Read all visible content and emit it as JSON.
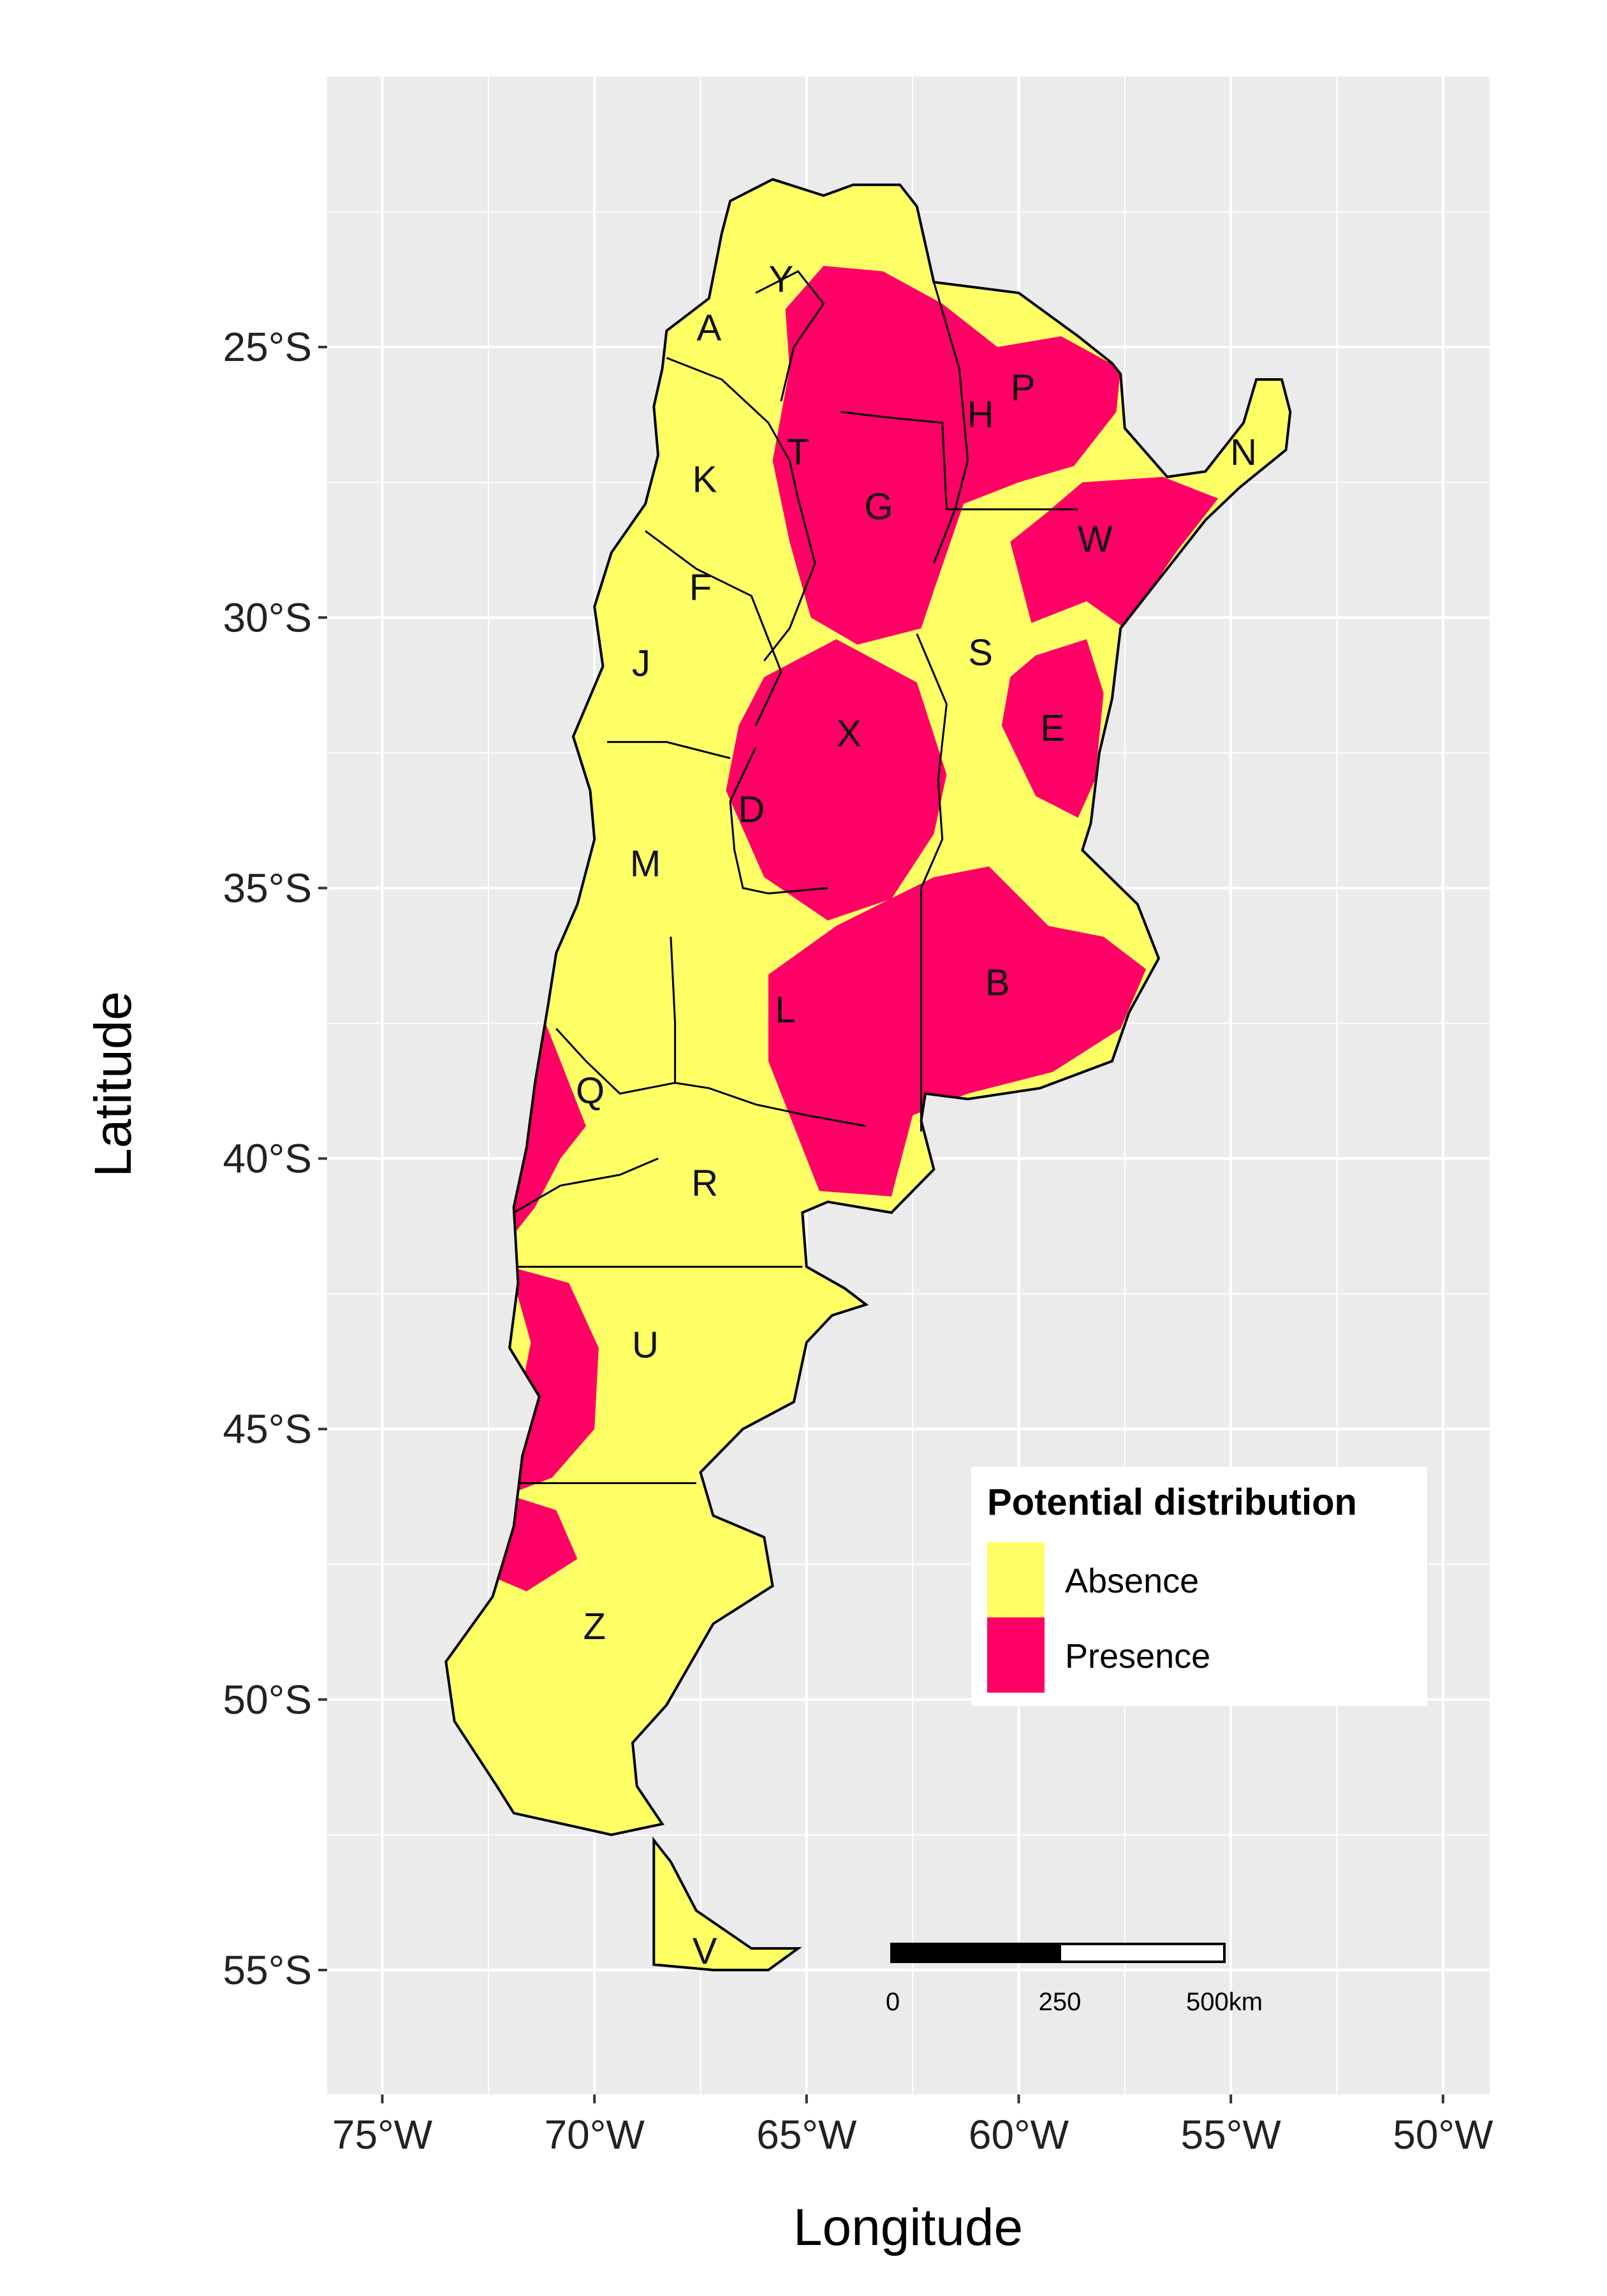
{
  "axes": {
    "x_title": "Longitude",
    "y_title": "Latitude",
    "x_ticks": [
      {
        "value": -75,
        "label": "75°W"
      },
      {
        "value": -70,
        "label": "70°W"
      },
      {
        "value": -65,
        "label": "65°W"
      },
      {
        "value": -60,
        "label": "60°W"
      },
      {
        "value": -55,
        "label": "55°W"
      },
      {
        "value": -50,
        "label": "50°W"
      }
    ],
    "y_ticks": [
      {
        "value": -25,
        "label": "25°S"
      },
      {
        "value": -30,
        "label": "30°S"
      },
      {
        "value": -35,
        "label": "35°S"
      },
      {
        "value": -40,
        "label": "40°S"
      },
      {
        "value": -45,
        "label": "45°S"
      },
      {
        "value": -50,
        "label": "50°S"
      },
      {
        "value": -55,
        "label": "55°S"
      }
    ],
    "x_range": [
      -76.3,
      -48.9
    ],
    "y_range": [
      -57.3,
      -20.0
    ]
  },
  "colors": {
    "panel": "#EBEBEB",
    "grid": "#FFFFFF",
    "absence": "#FFFF66",
    "presence": "#FF0066",
    "border": "#000000"
  },
  "legend": {
    "title": "Potential distribution",
    "position": "bottom-right",
    "items": [
      {
        "label": "Absence",
        "color": "#FFFF66"
      },
      {
        "label": "Presence",
        "color": "#FF0066"
      }
    ]
  },
  "scale_bar": {
    "labels": [
      "0",
      "250",
      "500km"
    ]
  },
  "regions": [
    {
      "code": "Y",
      "lon": -65.6,
      "lat": -23.8
    },
    {
      "code": "A",
      "lon": -67.3,
      "lat": -24.7
    },
    {
      "code": "P",
      "lon": -59.9,
      "lat": -25.8
    },
    {
      "code": "H",
      "lon": -60.9,
      "lat": -26.3
    },
    {
      "code": "T",
      "lon": -65.2,
      "lat": -27.0
    },
    {
      "code": "K",
      "lon": -67.4,
      "lat": -27.5
    },
    {
      "code": "N",
      "lon": -54.7,
      "lat": -27.0
    },
    {
      "code": "G",
      "lon": -63.3,
      "lat": -28.0
    },
    {
      "code": "W",
      "lon": -58.2,
      "lat": -28.6
    },
    {
      "code": "F",
      "lon": -67.5,
      "lat": -29.5
    },
    {
      "code": "S",
      "lon": -60.9,
      "lat": -30.7
    },
    {
      "code": "J",
      "lon": -68.9,
      "lat": -30.9
    },
    {
      "code": "E",
      "lon": -59.2,
      "lat": -32.1
    },
    {
      "code": "X",
      "lon": -64.0,
      "lat": -32.2
    },
    {
      "code": "D",
      "lon": -66.3,
      "lat": -33.6
    },
    {
      "code": "M",
      "lon": -68.8,
      "lat": -34.6
    },
    {
      "code": "B",
      "lon": -60.5,
      "lat": -36.8
    },
    {
      "code": "L",
      "lon": -65.5,
      "lat": -37.3
    },
    {
      "code": "Q",
      "lon": -70.1,
      "lat": -38.8
    },
    {
      "code": "R",
      "lon": -67.4,
      "lat": -40.5
    },
    {
      "code": "U",
      "lon": -68.8,
      "lat": -43.5
    },
    {
      "code": "Z",
      "lon": -70.0,
      "lat": -48.7
    },
    {
      "code": "V",
      "lon": -67.4,
      "lat": -54.7
    }
  ]
}
